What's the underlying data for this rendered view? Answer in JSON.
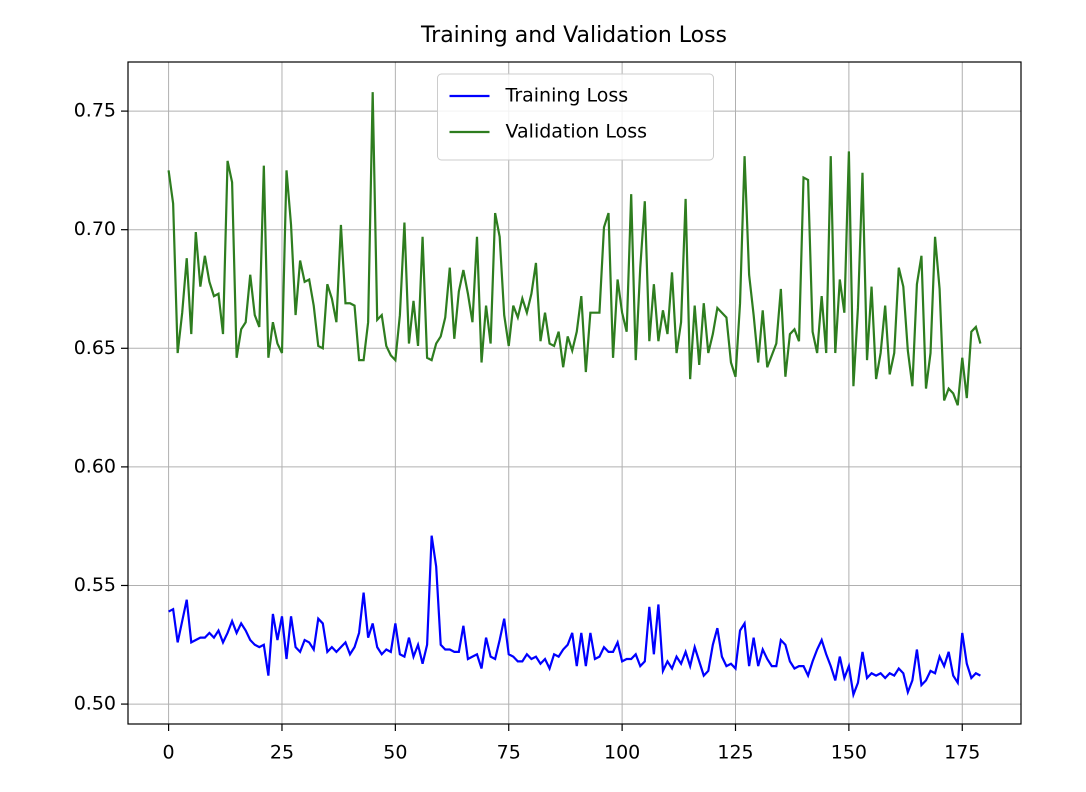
{
  "chart_data": {
    "type": "line",
    "title": "Training and Validation Loss",
    "x": [
      0,
      1,
      2,
      3,
      4,
      5,
      6,
      7,
      8,
      9,
      10,
      11,
      12,
      13,
      14,
      15,
      16,
      17,
      18,
      19,
      20,
      21,
      22,
      23,
      24,
      25,
      26,
      27,
      28,
      29,
      30,
      31,
      32,
      33,
      34,
      35,
      36,
      37,
      38,
      39,
      40,
      41,
      42,
      43,
      44,
      45,
      46,
      47,
      48,
      49,
      50,
      51,
      52,
      53,
      54,
      55,
      56,
      57,
      58,
      59,
      60,
      61,
      62,
      63,
      64,
      65,
      66,
      67,
      68,
      69,
      70,
      71,
      72,
      73,
      74,
      75,
      76,
      77,
      78,
      79,
      80,
      81,
      82,
      83,
      84,
      85,
      86,
      87,
      88,
      89,
      90,
      91,
      92,
      93,
      94,
      95,
      96,
      97,
      98,
      99,
      100,
      101,
      102,
      103,
      104,
      105,
      106,
      107,
      108,
      109,
      110,
      111,
      112,
      113,
      114,
      115,
      116,
      117,
      118,
      119,
      120,
      121,
      122,
      123,
      124,
      125,
      126,
      127,
      128,
      129,
      130,
      131,
      132,
      133,
      134,
      135,
      136,
      137,
      138,
      139,
      140,
      141,
      142,
      143,
      144,
      145,
      146,
      147,
      148,
      149,
      150,
      151,
      152,
      153,
      154,
      155,
      156,
      157,
      158,
      159,
      160,
      161,
      162,
      163,
      164,
      165,
      166,
      167,
      168,
      169,
      170,
      171,
      172,
      173,
      174,
      175,
      176,
      177,
      178,
      179
    ],
    "series": [
      {
        "name": "Training Loss",
        "color": "#0000ff",
        "values": [
          0.539,
          0.54,
          0.526,
          0.535,
          0.544,
          0.526,
          0.527,
          0.528,
          0.528,
          0.53,
          0.528,
          0.531,
          0.526,
          0.53,
          0.535,
          0.53,
          0.534,
          0.531,
          0.527,
          0.525,
          0.524,
          0.525,
          0.512,
          0.538,
          0.527,
          0.537,
          0.519,
          0.537,
          0.524,
          0.522,
          0.527,
          0.526,
          0.523,
          0.536,
          0.534,
          0.522,
          0.524,
          0.522,
          0.524,
          0.526,
          0.521,
          0.524,
          0.53,
          0.547,
          0.528,
          0.534,
          0.524,
          0.521,
          0.523,
          0.522,
          0.534,
          0.521,
          0.52,
          0.528,
          0.52,
          0.525,
          0.517,
          0.525,
          0.571,
          0.558,
          0.525,
          0.523,
          0.523,
          0.522,
          0.522,
          0.533,
          0.519,
          0.52,
          0.521,
          0.515,
          0.528,
          0.52,
          0.519,
          0.527,
          0.536,
          0.521,
          0.52,
          0.518,
          0.518,
          0.521,
          0.519,
          0.52,
          0.517,
          0.519,
          0.515,
          0.521,
          0.52,
          0.523,
          0.525,
          0.53,
          0.516,
          0.53,
          0.516,
          0.53,
          0.519,
          0.52,
          0.524,
          0.522,
          0.522,
          0.526,
          0.518,
          0.519,
          0.519,
          0.521,
          0.516,
          0.518,
          0.541,
          0.521,
          0.542,
          0.514,
          0.518,
          0.515,
          0.52,
          0.517,
          0.522,
          0.516,
          0.524,
          0.518,
          0.512,
          0.514,
          0.525,
          0.532,
          0.52,
          0.516,
          0.517,
          0.515,
          0.531,
          0.534,
          0.516,
          0.528,
          0.516,
          0.523,
          0.519,
          0.516,
          0.516,
          0.527,
          0.525,
          0.518,
          0.515,
          0.516,
          0.516,
          0.512,
          0.518,
          0.523,
          0.527,
          0.521,
          0.516,
          0.51,
          0.52,
          0.511,
          0.516,
          0.504,
          0.509,
          0.522,
          0.511,
          0.513,
          0.512,
          0.513,
          0.511,
          0.513,
          0.512,
          0.515,
          0.513,
          0.505,
          0.51,
          0.523,
          0.508,
          0.51,
          0.514,
          0.513,
          0.52,
          0.516,
          0.522,
          0.512,
          0.509,
          0.53,
          0.517,
          0.511,
          0.513,
          0.512
        ]
      },
      {
        "name": "Validation Loss",
        "color": "#2e7d1f",
        "values": [
          0.725,
          0.711,
          0.648,
          0.665,
          0.688,
          0.656,
          0.699,
          0.676,
          0.689,
          0.678,
          0.672,
          0.673,
          0.656,
          0.729,
          0.72,
          0.646,
          0.658,
          0.661,
          0.681,
          0.664,
          0.659,
          0.727,
          0.646,
          0.661,
          0.652,
          0.648,
          0.725,
          0.702,
          0.664,
          0.687,
          0.678,
          0.679,
          0.668,
          0.651,
          0.65,
          0.677,
          0.671,
          0.661,
          0.702,
          0.669,
          0.669,
          0.668,
          0.645,
          0.645,
          0.661,
          0.758,
          0.662,
          0.664,
          0.651,
          0.647,
          0.645,
          0.664,
          0.703,
          0.652,
          0.67,
          0.651,
          0.697,
          0.646,
          0.645,
          0.652,
          0.655,
          0.663,
          0.684,
          0.654,
          0.674,
          0.683,
          0.673,
          0.661,
          0.697,
          0.644,
          0.668,
          0.652,
          0.707,
          0.697,
          0.664,
          0.651,
          0.668,
          0.663,
          0.671,
          0.665,
          0.673,
          0.686,
          0.653,
          0.665,
          0.652,
          0.651,
          0.657,
          0.642,
          0.655,
          0.649,
          0.657,
          0.672,
          0.64,
          0.665,
          0.665,
          0.665,
          0.701,
          0.707,
          0.646,
          0.679,
          0.665,
          0.657,
          0.715,
          0.645,
          0.684,
          0.712,
          0.653,
          0.677,
          0.653,
          0.666,
          0.656,
          0.682,
          0.648,
          0.661,
          0.713,
          0.637,
          0.668,
          0.643,
          0.669,
          0.648,
          0.656,
          0.667,
          0.665,
          0.663,
          0.644,
          0.638,
          0.669,
          0.731,
          0.681,
          0.664,
          0.644,
          0.666,
          0.642,
          0.647,
          0.652,
          0.675,
          0.638,
          0.656,
          0.658,
          0.653,
          0.722,
          0.721,
          0.657,
          0.648,
          0.672,
          0.648,
          0.731,
          0.648,
          0.679,
          0.665,
          0.733,
          0.634,
          0.667,
          0.724,
          0.645,
          0.676,
          0.637,
          0.648,
          0.668,
          0.639,
          0.648,
          0.684,
          0.676,
          0.649,
          0.634,
          0.677,
          0.689,
          0.633,
          0.648,
          0.697,
          0.675,
          0.628,
          0.633,
          0.631,
          0.626,
          0.646,
          0.629,
          0.657,
          0.659,
          0.652
        ]
      }
    ],
    "xlim": [
      -8.95,
      187.95
    ],
    "xticks": [
      0,
      25,
      50,
      75,
      100,
      125,
      150,
      175
    ],
    "ylim": [
      0.4916,
      0.7707
    ],
    "yticks": [
      {
        "value": 0.5,
        "label": "0.50"
      },
      {
        "value": 0.55,
        "label": "0.55"
      },
      {
        "value": 0.6,
        "label": "0.60"
      },
      {
        "value": 0.65,
        "label": "0.65"
      },
      {
        "value": 0.7,
        "label": "0.70"
      },
      {
        "value": 0.75,
        "label": "0.75"
      }
    ],
    "grid": true,
    "legend": "upper center"
  }
}
